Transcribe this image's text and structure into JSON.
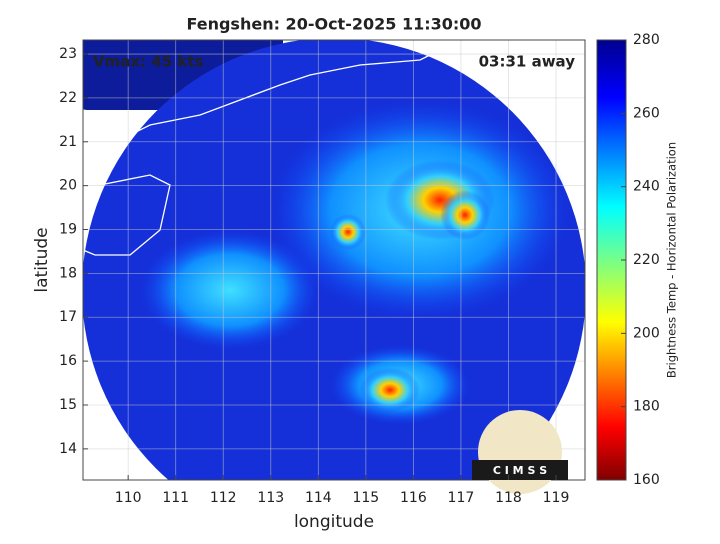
{
  "title": "Fengshen: 20-Oct-2025 11:30:00",
  "annotations": {
    "vmax": "Vmax: 45 kts",
    "time": "03:31 away"
  },
  "x_axis": {
    "label": "longitude",
    "lim": [
      109.05,
      119.61
    ],
    "ticks": [
      110,
      111,
      112,
      113,
      114,
      115,
      116,
      117,
      118,
      119
    ]
  },
  "y_axis": {
    "label": "latitude",
    "lim": [
      13.29,
      23.32
    ],
    "ticks": [
      14,
      15,
      16,
      17,
      18,
      19,
      20,
      21,
      22,
      23
    ]
  },
  "colorbar": {
    "label": "Brightness Temp - Horizontal Polarization",
    "lim": [
      160,
      280
    ],
    "ticks": [
      160,
      180,
      200,
      220,
      240,
      260,
      280
    ]
  },
  "logo": "C I M S S"
}
